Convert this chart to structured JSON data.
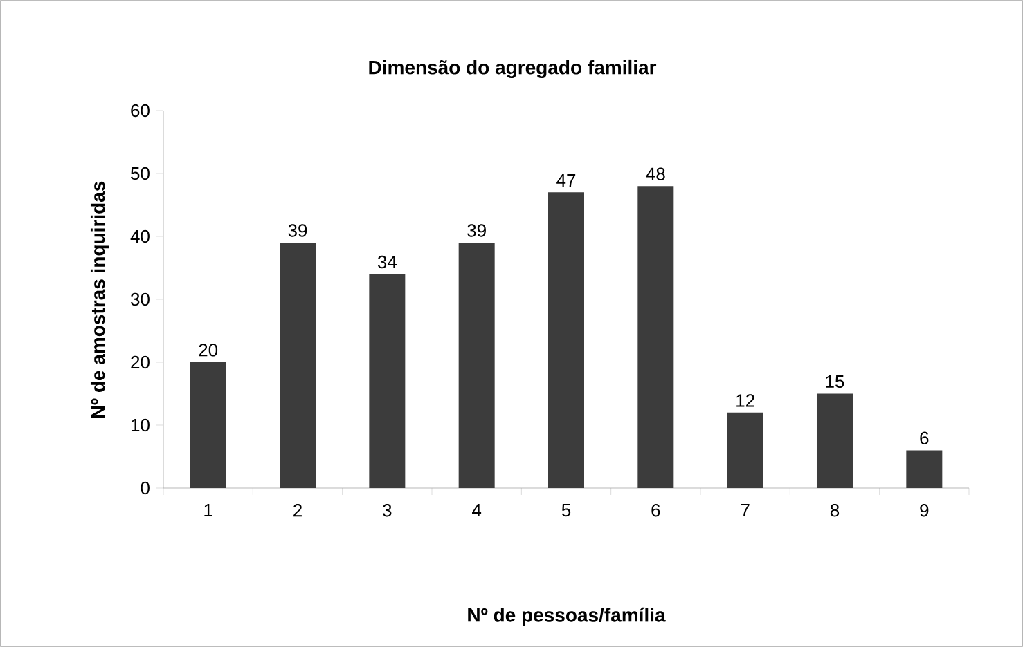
{
  "chart_data": {
    "type": "bar",
    "title": "Dimensão do agregado familiar",
    "xlabel": "Nº de pessoas/família",
    "ylabel": "Nº de amostras inquiridas",
    "categories": [
      "1",
      "2",
      "3",
      "4",
      "5",
      "6",
      "7",
      "8",
      "9"
    ],
    "values": [
      20,
      39,
      34,
      39,
      47,
      48,
      12,
      15,
      6
    ],
    "color": "#3c3c3c",
    "ylim": [
      0,
      60
    ],
    "yticks": [
      0,
      10,
      20,
      30,
      40,
      50,
      60
    ],
    "data_labels": true,
    "grid": false
  }
}
